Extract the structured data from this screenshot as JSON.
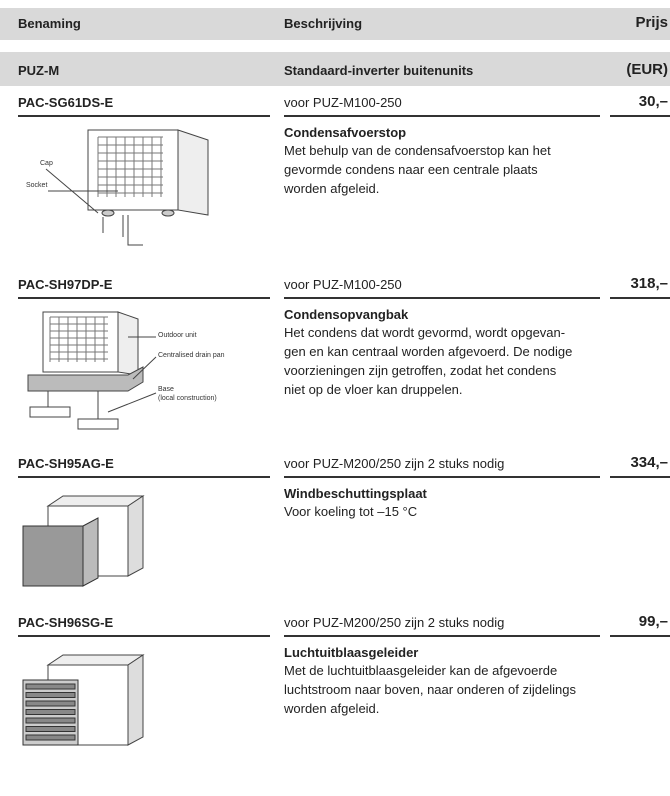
{
  "header": {
    "columns": [
      "Benaming",
      "Beschrijving",
      "Prijs"
    ]
  },
  "section": {
    "code": "PUZ-M",
    "description": "Standaard-inverter buitenunits",
    "unit": "(EUR)"
  },
  "items": [
    {
      "code": "PAC-SG61DS-E",
      "compatibility": "voor PUZ-M100-250",
      "price": "30,–",
      "title": "Condensafvoerstop",
      "description": [
        "Met behulp van de condensafvoerstop kan het",
        "gevormde condens naar een centrale plaats",
        "worden afgeleid."
      ],
      "diagram_labels": [
        "Cap",
        "Socket"
      ]
    },
    {
      "code": "PAC-SH97DP-E",
      "compatibility": "voor PUZ-M100-250",
      "price": "318,–",
      "title": "Condensopvangbak",
      "description": [
        "Het condens dat wordt gevormd, wordt opgevan-",
        "gen en kan centraal worden afgevoerd. De nodige",
        "voorzieningen zijn getroffen, zodat het condens",
        "niet op de vloer kan druppelen."
      ],
      "diagram_labels": [
        "Outdoor unit",
        "Centralised drain pan",
        "Base",
        "(local construction)"
      ]
    },
    {
      "code": "PAC-SH95AG-E",
      "compatibility": "voor PUZ-M200/250 zijn 2 stuks nodig",
      "price": "334,–",
      "title": "Windbeschuttingsplaat",
      "description": [
        "Voor koeling tot –15 °C"
      ],
      "diagram_labels": []
    },
    {
      "code": "PAC-SH96SG-E",
      "compatibility": "voor PUZ-M200/250 zijn 2 stuks nodig",
      "price": "99,–",
      "title": "Luchtuitblaasgeleider",
      "description": [
        "Met de luchtuitblaasgeleider kan de afgevoerde",
        "luchtstroom naar boven, naar onderen of zijdelings",
        "worden afgeleid."
      ],
      "diagram_labels": []
    }
  ]
}
